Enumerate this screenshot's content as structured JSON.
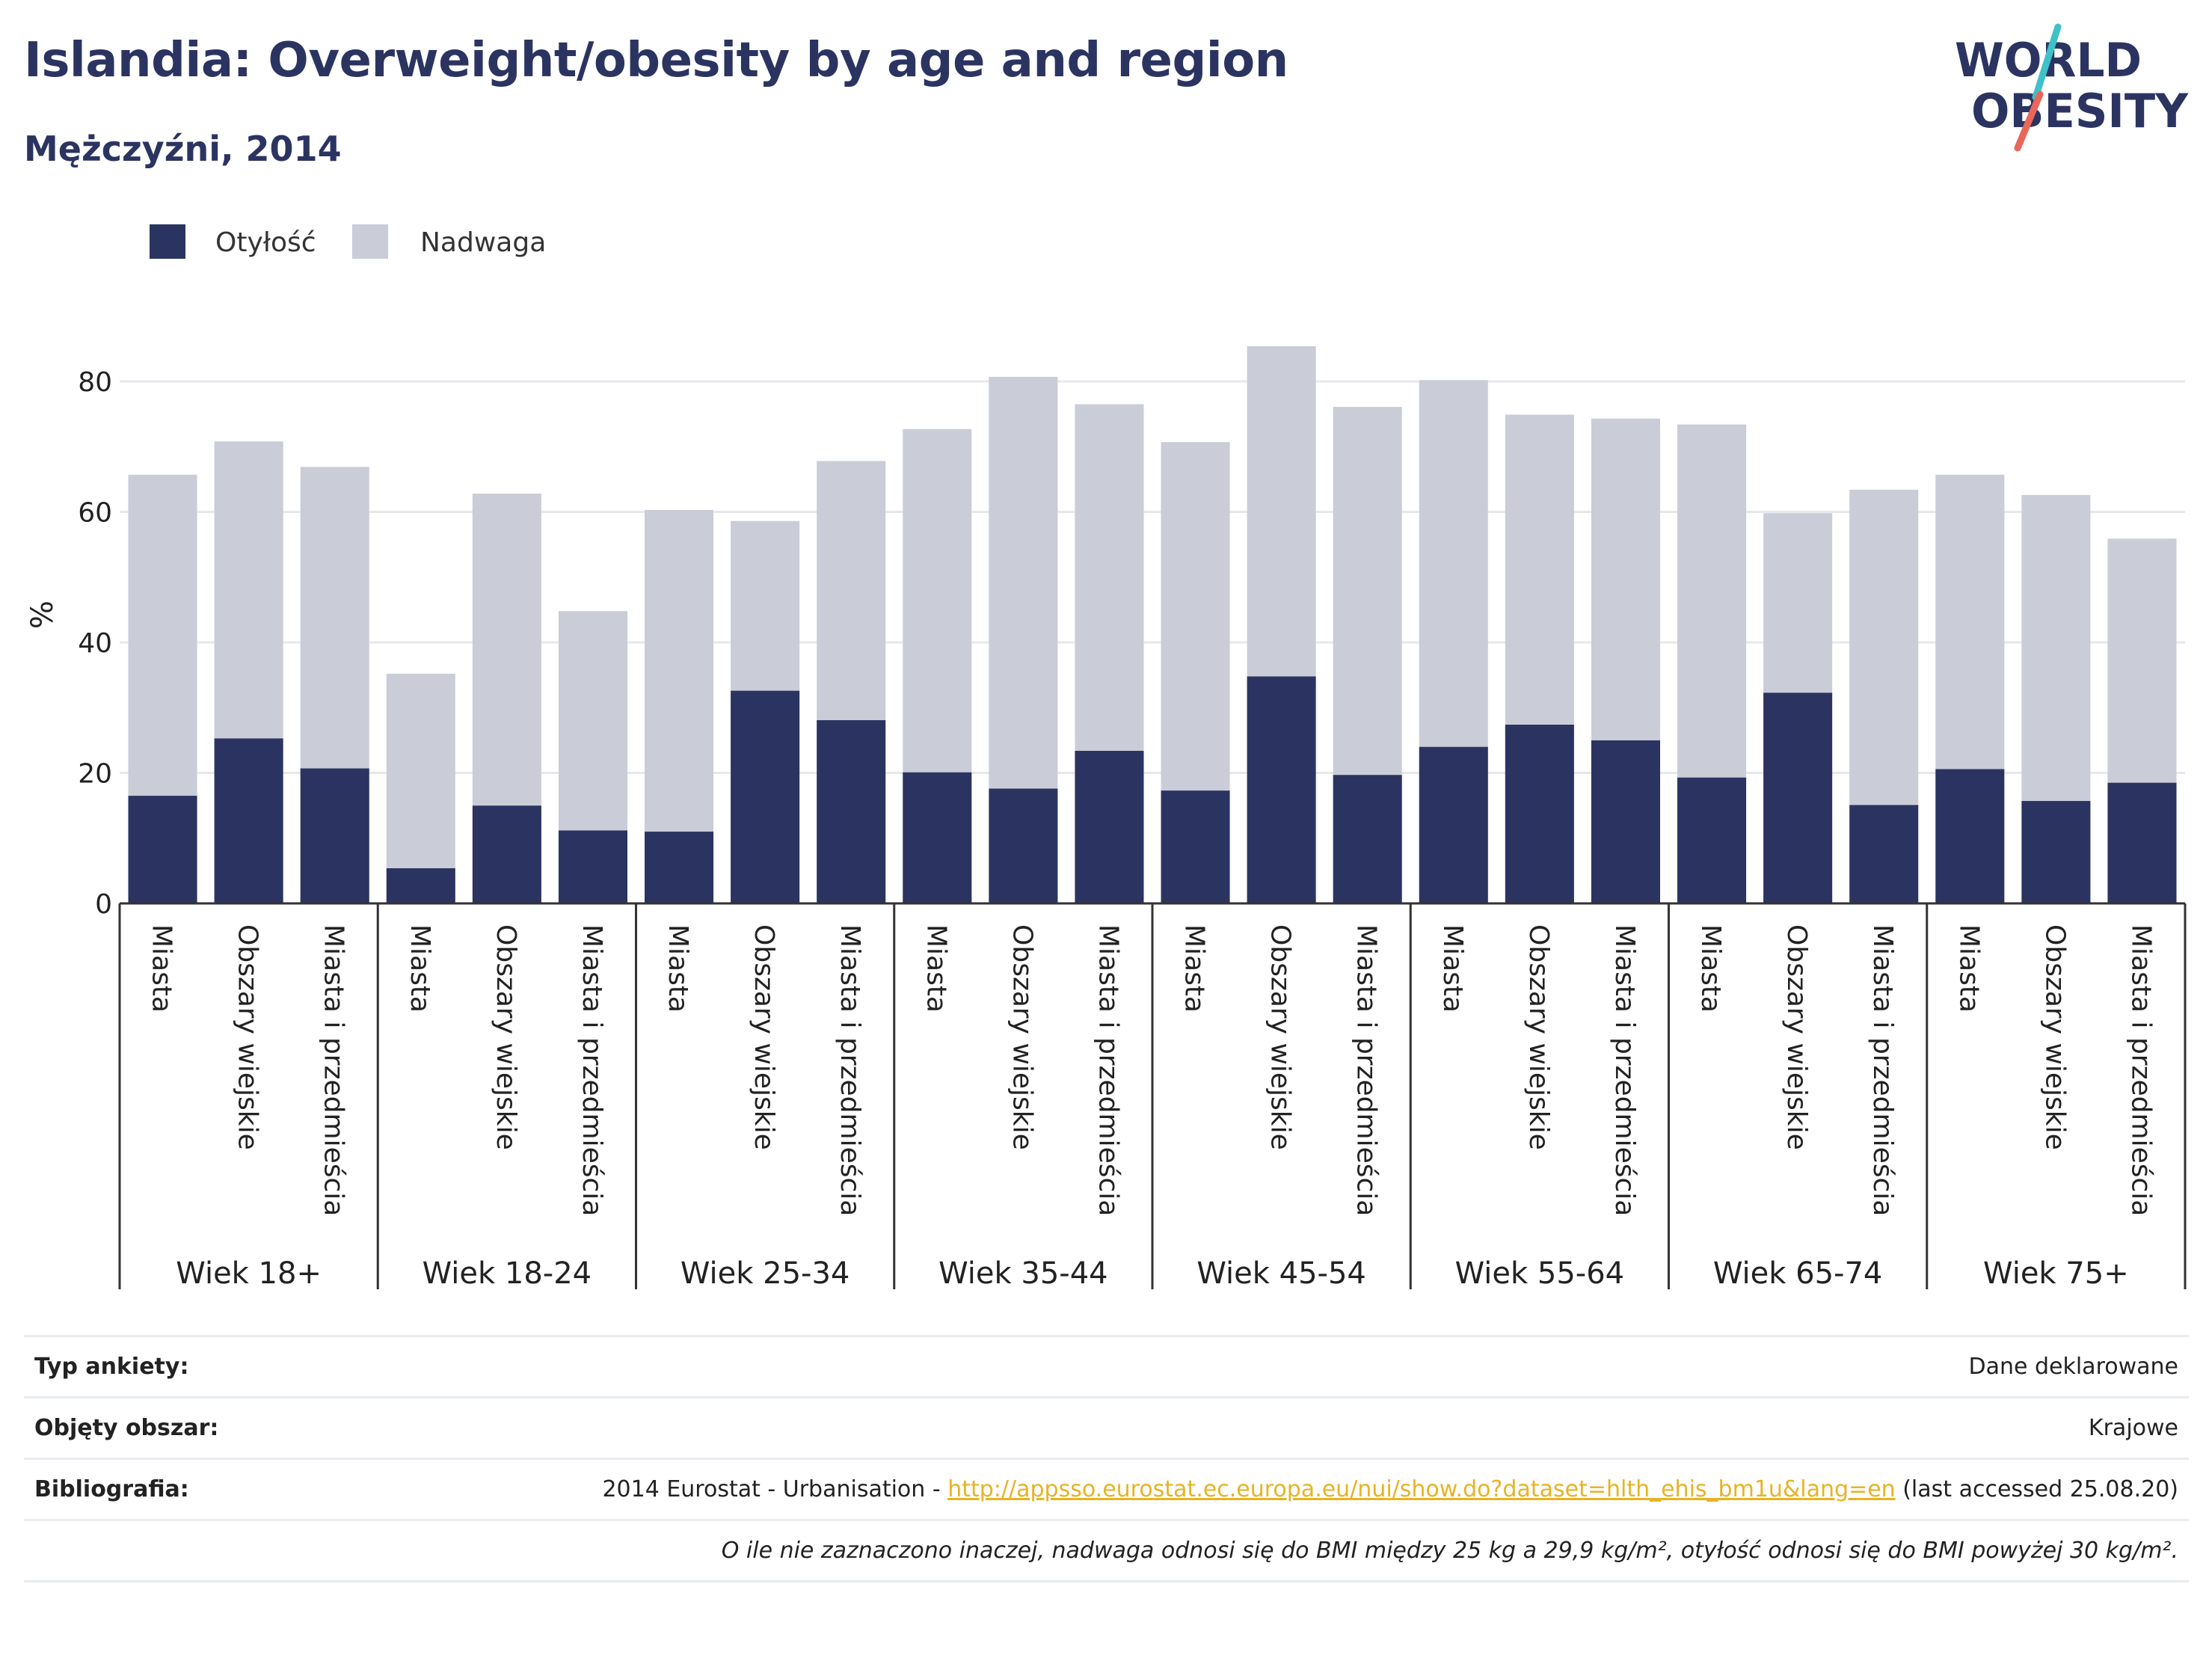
{
  "header": {
    "title": "Islandia: Overweight/obesity by age and region",
    "subtitle": "Mężczyźni, 2014"
  },
  "logo": {
    "line1": "WORLD",
    "line2": "OBESITY",
    "accent_colors": [
      "#3fc1c9",
      "#e8665a"
    ],
    "text_color": "#2b3461"
  },
  "colors": {
    "obesity": "#2b3461",
    "overweight": "#cacdd8",
    "axis": "#333333",
    "grid": "#e6e8ec",
    "link": "#e8b323"
  },
  "chart_data": {
    "type": "bar",
    "stacked": true,
    "ylabel": "%",
    "ylim": [
      0,
      90
    ],
    "yticks": [
      0,
      20,
      40,
      60,
      80
    ],
    "grid": true,
    "legend_position": "top-left",
    "series": [
      {
        "name": "Otyłość",
        "color": "#2b3461",
        "values": [
          16.5,
          25.3,
          20.7,
          5.4,
          15,
          11.2,
          11,
          32.6,
          28.1,
          20.1,
          17.6,
          23.4,
          17.3,
          34.8,
          19.7,
          24,
          27.4,
          25,
          19.3,
          32.3,
          15.1,
          20.6,
          15.7,
          18.5
        ]
      },
      {
        "name": "Nadwaga",
        "color": "#cacdd8",
        "values": [
          49.2,
          45.5,
          46.2,
          29.8,
          47.8,
          33.6,
          49.3,
          26,
          39.7,
          52.6,
          63.1,
          53.1,
          53.4,
          50.6,
          56.4,
          56.2,
          47.5,
          49.3,
          54.1,
          27.5,
          48.3,
          45.1,
          46.9,
          37.4
        ]
      }
    ],
    "groups": [
      {
        "label": "Wiek 18+",
        "categories": [
          "Miasta",
          "Obszary wiejskie",
          "Miasta i przedmieścia"
        ]
      },
      {
        "label": "Wiek 18-24",
        "categories": [
          "Miasta",
          "Obszary wiejskie",
          "Miasta i przedmieścia"
        ]
      },
      {
        "label": "Wiek 25-34",
        "categories": [
          "Miasta",
          "Obszary wiejskie",
          "Miasta i przedmieścia"
        ]
      },
      {
        "label": "Wiek 35-44",
        "categories": [
          "Miasta",
          "Obszary wiejskie",
          "Miasta i przedmieścia"
        ]
      },
      {
        "label": "Wiek 45-54",
        "categories": [
          "Miasta",
          "Obszary wiejskie",
          "Miasta i przedmieścia"
        ]
      },
      {
        "label": "Wiek 55-64",
        "categories": [
          "Miasta",
          "Obszary wiejskie",
          "Miasta i przedmieścia"
        ]
      },
      {
        "label": "Wiek 65-74",
        "categories": [
          "Miasta",
          "Obszary wiejskie",
          "Miasta i przedmieścia"
        ]
      },
      {
        "label": "Wiek 75+",
        "categories": [
          "Miasta",
          "Obszary wiejskie",
          "Miasta i przedmieścia"
        ]
      }
    ]
  },
  "footer": {
    "survey_type_label": "Typ ankiety:",
    "survey_type_value": "Dane deklarowane",
    "area_label": "Objęty obszar:",
    "area_value": "Krajowe",
    "bibliography_label": "Bibliografia:",
    "bibliography_prefix": "2014 Eurostat - Urbanisation - ",
    "bibliography_link": "http://appsso.eurostat.ec.europa.eu/nui/show.do?dataset=hlth_ehis_bm1u&lang=en",
    "bibliography_suffix": " (last accessed 25.08.20)",
    "note": "O ile nie zaznaczono inaczej, nadwaga odnosi się do BMI między 25 kg a 29,9 kg/m², otyłość odnosi się do BMI powyżej 30 kg/m²."
  }
}
